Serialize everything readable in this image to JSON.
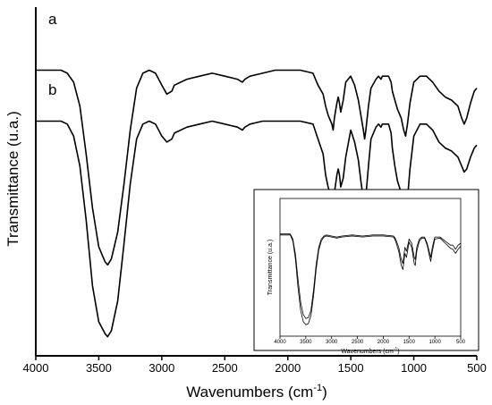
{
  "chart_data": [
    {
      "type": "line",
      "xlabel": "Wavenumbers (cm",
      "xlabel_sup": "-1",
      "xlabel_end": ")",
      "ylabel": "Transmittance (u.a.)",
      "x_ticks": [
        "4000",
        "3500",
        "3000",
        "2500",
        "2000",
        "1500",
        "1000",
        "500"
      ],
      "xlim": [
        4000,
        500
      ],
      "x_reversed": true,
      "y_tick_labels_shown": false,
      "grid": false,
      "line_color": "#000000",
      "curve_labels": [
        "a",
        "b"
      ],
      "series": [
        {
          "label": "a",
          "x": [
            4000,
            3850,
            3800,
            3750,
            3700,
            3650,
            3600,
            3550,
            3500,
            3450,
            3430,
            3400,
            3350,
            3300,
            3250,
            3200,
            3150,
            3100,
            3050,
            3000,
            2960,
            2920,
            2900,
            2850,
            2800,
            2700,
            2600,
            2500,
            2400,
            2360,
            2340,
            2300,
            2200,
            2100,
            2000,
            1900,
            1800,
            1760,
            1720,
            1700,
            1680,
            1650,
            1640,
            1630,
            1610,
            1600,
            1590,
            1580,
            1560,
            1540,
            1500,
            1470,
            1440,
            1420,
            1400,
            1390,
            1380,
            1360,
            1340,
            1300,
            1280,
            1260,
            1250,
            1200,
            1180,
            1170,
            1150,
            1130,
            1100,
            1080,
            1065,
            1050,
            1030,
            1000,
            950,
            900,
            850,
            800,
            750,
            700,
            650,
            620,
            600,
            580,
            550,
            520,
            500
          ],
          "y": [
            0.9,
            0.9,
            0.9,
            0.89,
            0.86,
            0.78,
            0.62,
            0.44,
            0.31,
            0.26,
            0.25,
            0.27,
            0.36,
            0.52,
            0.7,
            0.84,
            0.89,
            0.9,
            0.89,
            0.85,
            0.82,
            0.83,
            0.85,
            0.86,
            0.87,
            0.88,
            0.89,
            0.88,
            0.87,
            0.86,
            0.87,
            0.88,
            0.89,
            0.9,
            0.9,
            0.9,
            0.89,
            0.85,
            0.82,
            0.78,
            0.75,
            0.72,
            0.7,
            0.74,
            0.79,
            0.81,
            0.79,
            0.76,
            0.8,
            0.86,
            0.88,
            0.85,
            0.8,
            0.75,
            0.7,
            0.67,
            0.7,
            0.78,
            0.84,
            0.87,
            0.88,
            0.87,
            0.88,
            0.88,
            0.86,
            0.83,
            0.8,
            0.77,
            0.74,
            0.7,
            0.68,
            0.72,
            0.79,
            0.86,
            0.88,
            0.88,
            0.86,
            0.83,
            0.81,
            0.8,
            0.78,
            0.74,
            0.72,
            0.74,
            0.79,
            0.83,
            0.84
          ]
        },
        {
          "label": "b",
          "x": [
            4000,
            3850,
            3800,
            3750,
            3700,
            3650,
            3600,
            3550,
            3500,
            3450,
            3430,
            3400,
            3350,
            3300,
            3250,
            3200,
            3150,
            3100,
            3050,
            3000,
            2960,
            2920,
            2900,
            2850,
            2800,
            2700,
            2600,
            2500,
            2400,
            2360,
            2340,
            2300,
            2200,
            2100,
            2000,
            1900,
            1800,
            1760,
            1720,
            1700,
            1680,
            1650,
            1640,
            1630,
            1610,
            1600,
            1590,
            1580,
            1560,
            1540,
            1500,
            1470,
            1440,
            1420,
            1400,
            1390,
            1380,
            1360,
            1340,
            1300,
            1280,
            1260,
            1250,
            1200,
            1180,
            1170,
            1150,
            1130,
            1100,
            1080,
            1065,
            1050,
            1030,
            1000,
            950,
            900,
            850,
            800,
            750,
            700,
            650,
            620,
            600,
            580,
            550,
            520,
            500
          ],
          "y": [
            0.73,
            0.73,
            0.73,
            0.72,
            0.68,
            0.58,
            0.4,
            0.18,
            0.06,
            0.02,
            0.01,
            0.03,
            0.13,
            0.32,
            0.52,
            0.67,
            0.72,
            0.73,
            0.72,
            0.68,
            0.66,
            0.67,
            0.69,
            0.7,
            0.71,
            0.72,
            0.73,
            0.72,
            0.71,
            0.7,
            0.71,
            0.72,
            0.73,
            0.73,
            0.73,
            0.73,
            0.72,
            0.67,
            0.62,
            0.55,
            0.51,
            0.47,
            0.45,
            0.49,
            0.55,
            0.57,
            0.55,
            0.51,
            0.54,
            0.61,
            0.7,
            0.66,
            0.6,
            0.53,
            0.47,
            0.44,
            0.48,
            0.58,
            0.67,
            0.71,
            0.72,
            0.71,
            0.72,
            0.72,
            0.69,
            0.64,
            0.58,
            0.53,
            0.49,
            0.45,
            0.43,
            0.47,
            0.57,
            0.68,
            0.72,
            0.72,
            0.7,
            0.66,
            0.64,
            0.63,
            0.61,
            0.58,
            0.56,
            0.57,
            0.61,
            0.64,
            0.65
          ]
        }
      ]
    },
    {
      "type": "line",
      "inset": true,
      "xlabel": "Wavenumbers (cm",
      "xlabel_sup": "-1",
      "xlabel_end": ")",
      "ylabel": "Transmittance (u.a.)",
      "x_ticks": [
        "4000",
        "3500",
        "3000",
        "2500",
        "2000",
        "1500",
        "1000",
        "500"
      ],
      "xlim": [
        4000,
        500
      ],
      "x_reversed": true,
      "grid": false,
      "line_color": "#000000",
      "series": [
        {
          "x": [
            4000,
            3800,
            3750,
            3700,
            3650,
            3600,
            3550,
            3500,
            3450,
            3400,
            3350,
            3300,
            3250,
            3200,
            3150,
            3100,
            3000,
            2900,
            2800,
            2600,
            2400,
            2200,
            2000,
            1800,
            1760,
            1700,
            1650,
            1620,
            1600,
            1580,
            1550,
            1500,
            1450,
            1400,
            1380,
            1350,
            1300,
            1250,
            1200,
            1150,
            1100,
            1080,
            1050,
            1000,
            900,
            800,
            700,
            650,
            600,
            550,
            500
          ],
          "y": [
            0.95,
            0.95,
            0.9,
            0.75,
            0.5,
            0.28,
            0.16,
            0.12,
            0.13,
            0.2,
            0.4,
            0.65,
            0.82,
            0.9,
            0.93,
            0.94,
            0.93,
            0.92,
            0.93,
            0.94,
            0.93,
            0.94,
            0.94,
            0.93,
            0.9,
            0.82,
            0.7,
            0.66,
            0.74,
            0.82,
            0.78,
            0.9,
            0.86,
            0.72,
            0.7,
            0.82,
            0.9,
            0.92,
            0.92,
            0.86,
            0.76,
            0.72,
            0.82,
            0.92,
            0.92,
            0.88,
            0.84,
            0.84,
            0.8,
            0.84,
            0.86
          ]
        },
        {
          "x": [
            4000,
            3800,
            3750,
            3700,
            3650,
            3600,
            3550,
            3500,
            3450,
            3400,
            3350,
            3300,
            3250,
            3200,
            3150,
            3100,
            3000,
            2900,
            2800,
            2600,
            2400,
            2200,
            2000,
            1800,
            1760,
            1700,
            1650,
            1620,
            1600,
            1580,
            1550,
            1500,
            1450,
            1400,
            1380,
            1350,
            1300,
            1250,
            1200,
            1150,
            1100,
            1080,
            1050,
            1000,
            900,
            800,
            700,
            650,
            600,
            550,
            500
          ],
          "y": [
            0.94,
            0.94,
            0.88,
            0.7,
            0.42,
            0.2,
            0.09,
            0.06,
            0.07,
            0.15,
            0.34,
            0.6,
            0.79,
            0.88,
            0.92,
            0.93,
            0.92,
            0.91,
            0.92,
            0.93,
            0.92,
            0.93,
            0.93,
            0.92,
            0.88,
            0.78,
            0.64,
            0.6,
            0.68,
            0.76,
            0.72,
            0.87,
            0.82,
            0.66,
            0.64,
            0.78,
            0.88,
            0.91,
            0.91,
            0.84,
            0.72,
            0.68,
            0.78,
            0.9,
            0.91,
            0.86,
            0.81,
            0.8,
            0.76,
            0.8,
            0.83
          ]
        }
      ]
    }
  ]
}
